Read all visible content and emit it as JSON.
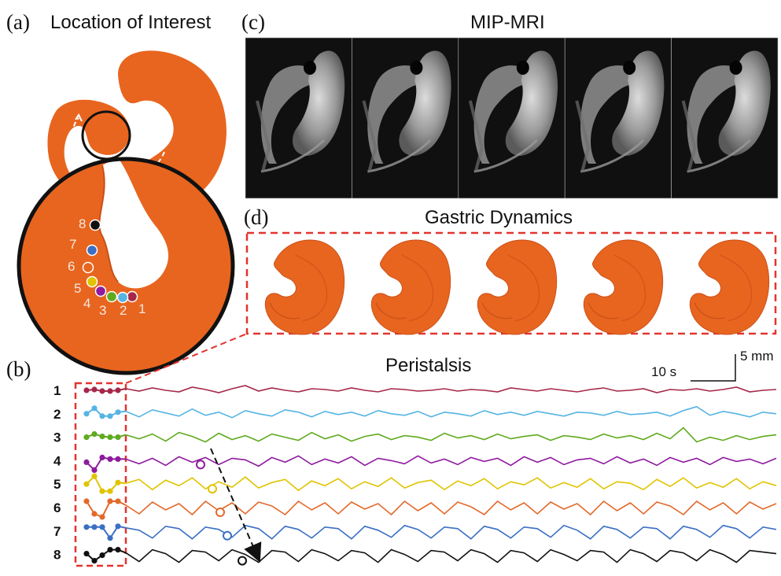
{
  "panels": {
    "a": {
      "label": "(a)",
      "title": "Location of Interest"
    },
    "b": {
      "label": "(b)",
      "title": "Peristalsis"
    },
    "c": {
      "label": "(c)",
      "title": "MIP-MRI"
    },
    "d": {
      "label": "(d)",
      "title": "Gastric Dynamics"
    }
  },
  "location_labels": [
    "1",
    "2",
    "3",
    "4",
    "5",
    "6",
    "7",
    "8"
  ],
  "scale_bar": {
    "time": "10 s",
    "amplitude": "5 mm"
  },
  "colors": {
    "stomach": "#e8651f",
    "dashed_box": "#e3342f",
    "series": [
      "#a5284a",
      "#56b4e3",
      "#5faa1e",
      "#8e1b9e",
      "#e0c400",
      "#e3692a",
      "#3a6fc4",
      "#111111"
    ]
  },
  "mri_frames": 5,
  "stomach_frames": 5,
  "chart_data": {
    "type": "line",
    "title": "Peristalsis",
    "series": [
      {
        "name": "1",
        "values": [
          0.2,
          -0.1,
          0.3,
          0.0,
          -0.2,
          0.4,
          0.1,
          -0.3,
          0.2,
          0.6,
          -0.1,
          0.3,
          0.0,
          -0.2,
          0.2,
          0.1,
          -0.1,
          0.3,
          0.0,
          -0.2,
          0.2,
          0.1,
          -0.1,
          0.0,
          0.2,
          -0.1,
          0.1,
          0.0,
          -0.2,
          0.3,
          0.1,
          -0.1,
          0.2,
          0.0,
          -0.2,
          0.1,
          0.3,
          -0.1,
          0.0,
          0.2,
          -0.3,
          0.1,
          0.0,
          0.2,
          -0.1,
          0.1,
          0.4,
          -0.2,
          0.0,
          0.1
        ]
      },
      {
        "name": "2",
        "values": [
          0.3,
          -0.4,
          0.5,
          0.1,
          -0.3,
          0.6,
          -0.2,
          0.2,
          -0.5,
          0.4,
          0.0,
          -0.3,
          0.5,
          0.2,
          -0.4,
          0.3,
          -0.1,
          0.2,
          -0.3,
          0.4,
          0.0,
          -0.2,
          0.3,
          -0.4,
          0.2,
          0.0,
          -0.3,
          0.4,
          -0.1,
          0.2,
          -0.2,
          0.3,
          0.0,
          -0.3,
          0.2,
          0.1,
          -0.2,
          0.3,
          -0.1,
          0.0,
          0.2,
          -0.3,
          0.4,
          0.9,
          -0.2,
          0.3,
          0.0,
          -0.4,
          0.2,
          0.0
        ]
      },
      {
        "name": "3",
        "values": [
          0.3,
          -0.2,
          0.4,
          -0.5,
          0.6,
          0.1,
          -0.6,
          0.5,
          -0.3,
          0.2,
          -0.5,
          0.4,
          0.0,
          -0.4,
          0.6,
          -0.2,
          0.3,
          -0.5,
          0.1,
          0.4,
          -0.3,
          0.2,
          0.0,
          -0.4,
          0.5,
          -0.1,
          0.2,
          -0.3,
          0.4,
          -0.2,
          0.1,
          0.3,
          -0.4,
          0.2,
          0.0,
          -0.3,
          0.4,
          -0.1,
          0.2,
          -0.3,
          0.5,
          -0.2,
          1.2,
          -0.6,
          0.0,
          -0.4,
          0.2,
          -0.3,
          0.1,
          0.3
        ]
      },
      {
        "name": "4",
        "values": [
          0.2,
          -0.4,
          0.3,
          -0.6,
          0.5,
          -0.2,
          0.4,
          -0.5,
          0.3,
          0.1,
          -0.7,
          0.4,
          -0.2,
          0.6,
          -0.5,
          0.2,
          -0.3,
          0.5,
          -0.6,
          0.3,
          0.0,
          -0.4,
          0.6,
          -0.3,
          0.2,
          -0.5,
          0.4,
          -0.1,
          0.3,
          -0.6,
          0.5,
          -0.2,
          0.4,
          -0.5,
          0.1,
          0.3,
          -0.4,
          0.5,
          -0.3,
          0.2,
          -0.6,
          0.4,
          -0.2,
          0.3,
          -0.5,
          0.4,
          -0.1,
          0.2,
          -0.4,
          0.3
        ]
      },
      {
        "name": "5",
        "values": [
          0.1,
          0.6,
          -0.7,
          0.5,
          -0.2,
          0.8,
          -0.6,
          0.3,
          -0.4,
          0.9,
          -0.5,
          0.2,
          0.6,
          -0.8,
          0.4,
          -0.2,
          0.7,
          -0.6,
          0.3,
          -0.3,
          0.8,
          -0.5,
          0.2,
          0.5,
          -0.7,
          0.4,
          -0.2,
          0.7,
          -0.6,
          0.3,
          -0.1,
          0.8,
          -0.5,
          0.2,
          -0.4,
          0.7,
          -0.6,
          0.3,
          0.1,
          -0.7,
          0.6,
          -0.3,
          0.8,
          -0.5,
          0.2,
          -0.4,
          0.7,
          -0.6,
          0.3,
          -0.2
        ]
      },
      {
        "name": "6",
        "values": [
          0.3,
          -0.8,
          0.7,
          -0.3,
          0.5,
          -0.9,
          0.8,
          -0.4,
          0.6,
          -0.8,
          0.7,
          0.2,
          -0.9,
          0.8,
          -0.3,
          0.6,
          -0.8,
          0.7,
          -0.2,
          0.5,
          -0.9,
          0.8,
          -0.4,
          0.6,
          -0.8,
          0.7,
          0.1,
          -0.9,
          0.8,
          -0.3,
          0.6,
          -0.8,
          0.7,
          -0.2,
          0.5,
          -0.9,
          0.8,
          -0.4,
          0.6,
          -0.8,
          0.7,
          0.2,
          -0.9,
          0.8,
          -0.3,
          0.6,
          -0.8,
          0.7,
          -0.2,
          0.5
        ]
      },
      {
        "name": "7",
        "values": [
          0.4,
          0.1,
          -0.9,
          0.6,
          0.3,
          -1.0,
          0.5,
          0.2,
          -0.8,
          0.7,
          0.3,
          -1.0,
          0.6,
          0.2,
          -0.9,
          0.5,
          0.3,
          -1.0,
          0.6,
          0.1,
          -0.8,
          0.7,
          0.2,
          -0.9,
          0.5,
          0.3,
          -1.0,
          0.6,
          0.2,
          -0.9,
          0.5,
          0.3,
          -0.8,
          0.7,
          0.1,
          -1.0,
          0.6,
          0.2,
          -0.9,
          0.5,
          0.3,
          -1.0,
          0.6,
          0.2,
          -0.8,
          0.7,
          0.3,
          -0.9,
          0.5,
          0.2
        ]
      },
      {
        "name": "8",
        "values": [
          0.2,
          -0.9,
          0.6,
          0.1,
          -1.0,
          0.5,
          0.3,
          -0.8,
          0.6,
          0.0,
          -1.0,
          0.5,
          0.3,
          -0.9,
          0.6,
          0.1,
          -0.8,
          0.5,
          0.2,
          -1.0,
          0.6,
          0.0,
          -0.9,
          0.5,
          0.3,
          -0.8,
          0.6,
          0.1,
          -1.0,
          0.5,
          0.2,
          -0.9,
          0.6,
          0.0,
          -0.8,
          0.5,
          0.3,
          -1.0,
          0.6,
          0.1,
          -0.9,
          0.5,
          0.2,
          -0.8,
          0.6,
          0.0,
          -1.0,
          0.5,
          0.3,
          0.1
        ]
      }
    ],
    "grid": false,
    "legend": "left"
  }
}
